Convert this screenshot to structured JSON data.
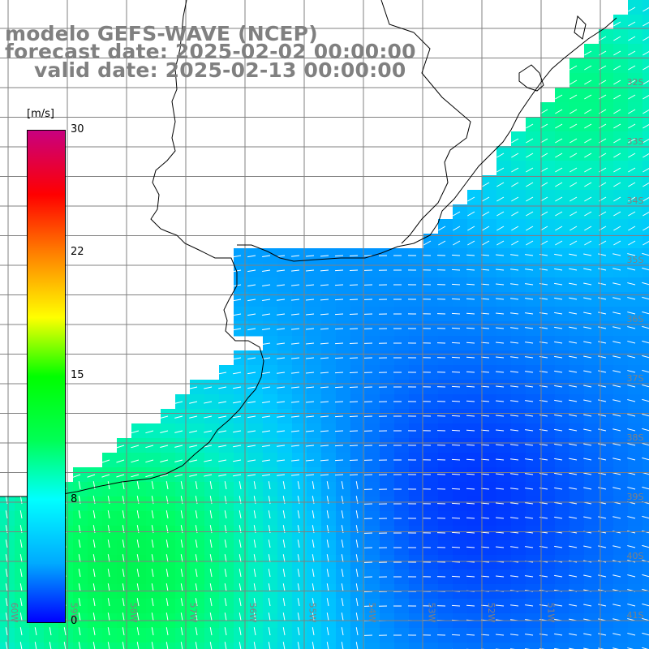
{
  "title": {
    "model": "modelo GEFS-WAVE (NCEP)",
    "forecast": "forecast date: 2025-02-02 00:00:00",
    "valid": "valid date: 2025-02-13 00:00:00"
  },
  "colorbar": {
    "units": "[m/s]",
    "ticks": [
      "30",
      "22",
      "15",
      "8",
      "0"
    ],
    "min": 0,
    "max": 30,
    "stops": [
      "#0000ff",
      "#00aaff",
      "#00ffff",
      "#00ff55",
      "#00ff00",
      "#ffff00",
      "#ff8000",
      "#ff0000",
      "#c80080"
    ]
  },
  "grid": {
    "lat_labels": [
      "32S",
      "33S",
      "34S",
      "35S",
      "36S",
      "37S",
      "38S",
      "39S",
      "40S",
      "41S"
    ],
    "lon_labels": [
      "60W",
      "59W",
      "58W",
      "57W",
      "56W",
      "55W",
      "54W",
      "53W",
      "52W",
      "51W"
    ]
  },
  "colors": {
    "land": "#ffffff",
    "coast": "#000000",
    "grid": "#808080",
    "arrow": "#ffffff"
  }
}
